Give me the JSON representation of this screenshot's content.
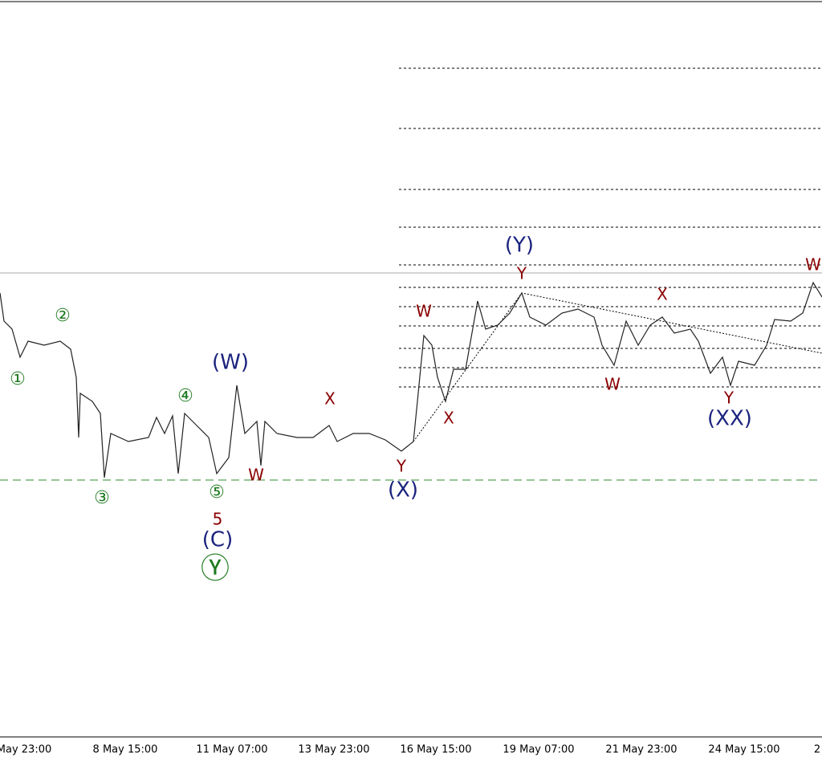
{
  "chart_data": {
    "type": "ohlc",
    "x_labels": [
      "May 23:00",
      "8 May 15:00",
      "11 May 07:00",
      "13 May 23:00",
      "16 May 15:00",
      "19 May 07:00",
      "21 May 23:00",
      "24 May 15:00",
      "2"
    ],
    "wave_labels": [
      "①",
      "②",
      "③",
      "④",
      "⑤",
      "Ⓨ",
      "5",
      "W",
      "X",
      "Y",
      "W",
      "X",
      "Y",
      "W",
      "X",
      "Y",
      "W",
      "(W)",
      "(C)",
      "(X)",
      "(Y)",
      "(XX)"
    ]
  }
}
